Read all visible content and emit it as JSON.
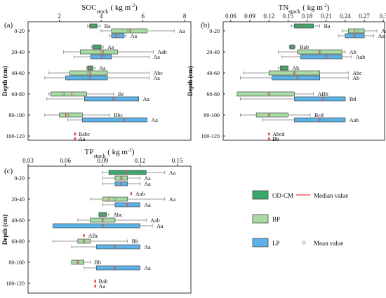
{
  "colors": {
    "odcm": "#3aa86a",
    "bp": "#a8dca4",
    "lp": "#5cb2e6",
    "median": "#e8413c",
    "mean": "#888888",
    "axis": "#000000"
  },
  "ylabel": "Depth (cm)",
  "depths": [
    "0-20",
    "20-40",
    "40-60",
    "60-80",
    "80-100",
    "100-120"
  ],
  "legend": {
    "odcm": "OD-CM",
    "bp": "BP",
    "lp": "LP",
    "median": "Median value",
    "mean": "Mean value"
  },
  "chart_data": [
    {
      "type": "box",
      "panel": "(a)",
      "title_main": "SOC",
      "title_sub": "stock",
      "title_units": "( kg m",
      "title_exp": "-2",
      "title_close": ")",
      "xticks": [
        2,
        4,
        6,
        8
      ],
      "xlim": [
        0.5,
        8.3
      ],
      "groups": [
        {
          "depth": "0-20",
          "boxes": [
            {
              "series": "OD-CM",
              "min": 3.35,
              "q1": 3.45,
              "median": 3.6,
              "q3": 3.8,
              "max": 3.95,
              "mean": 3.6,
              "label": "Ba"
            },
            {
              "series": "BP",
              "min": 4.0,
              "q1": 4.5,
              "median": 5.4,
              "q3": 6.2,
              "max": 7.5,
              "mean": 5.3,
              "label": "Aa"
            },
            {
              "series": "LP",
              "min": 4.4,
              "q1": 4.5,
              "median": 4.7,
              "q3": 5.1,
              "max": 5.2,
              "mean": 4.8,
              "label": "Aa"
            }
          ]
        },
        {
          "depth": "20-40",
          "boxes": [
            {
              "series": "OD-CM",
              "min": 3.55,
              "q1": 3.6,
              "median": 3.75,
              "q3": 4.0,
              "max": 4.1,
              "mean": 3.8,
              "label": "Aa"
            },
            {
              "series": "BP",
              "min": 2.2,
              "q1": 3.0,
              "median": 4.1,
              "q3": 4.8,
              "max": 6.5,
              "mean": 4.0,
              "label": "Aab"
            },
            {
              "series": "LP",
              "min": 2.7,
              "q1": 3.5,
              "median": 4.0,
              "q3": 4.5,
              "max": 6.3,
              "mean": 4.1,
              "label": "Aa"
            }
          ]
        },
        {
          "depth": "40-60",
          "boxes": [
            {
              "series": "OD-CM",
              "min": 3.3,
              "q1": 3.35,
              "median": 3.45,
              "q3": 3.6,
              "max": 3.7,
              "mean": 3.5,
              "label": "Aa"
            },
            {
              "series": "BP",
              "min": 1.5,
              "q1": 2.5,
              "median": 3.5,
              "q3": 4.3,
              "max": 6.3,
              "mean": 3.4,
              "label": "Abc"
            },
            {
              "series": "LP",
              "min": 1.3,
              "q1": 2.3,
              "median": 3.5,
              "q3": 4.3,
              "max": 6.3,
              "mean": 3.4,
              "label": "Aa"
            }
          ]
        },
        {
          "depth": "60-80",
          "boxes": [
            {
              "series": "BP",
              "min": 1.5,
              "q1": 1.6,
              "median": 2.6,
              "q3": 3.3,
              "max": 4.6,
              "mean": 2.2,
              "label": "Bc"
            },
            {
              "series": "LP",
              "min": 1.4,
              "q1": 3.2,
              "median": 4.6,
              "q3": 5.8,
              "max": 5.8,
              "mean": 4.6,
              "label": "Aa"
            }
          ]
        },
        {
          "depth": "80-100",
          "boxes": [
            {
              "series": "BP",
              "min": 1.3,
              "q1": 2.0,
              "median": 2.3,
              "q3": 3.1,
              "max": 4.4,
              "mean": 2.4,
              "label": "Bbc"
            },
            {
              "series": "LP",
              "min": 2.4,
              "q1": 3.1,
              "median": 5.1,
              "q3": 6.2,
              "max": 6.2,
              "mean": 5.1,
              "label": "Aa"
            }
          ]
        },
        {
          "depth": "100-120",
          "boxes": [
            {
              "series": "BP",
              "min": 2.75,
              "q1": 2.75,
              "median": 2.75,
              "q3": 2.75,
              "max": 2.75,
              "mean": 2.75,
              "label": "Babc"
            },
            {
              "series": "LP",
              "min": 2.75,
              "q1": 2.75,
              "median": 2.75,
              "q3": 2.75,
              "max": 2.75,
              "mean": 2.75,
              "label": "Aa"
            }
          ]
        }
      ]
    },
    {
      "type": "box",
      "panel": "(b)",
      "title_main": "TN",
      "title_sub": "stock",
      "title_units": "( kg m",
      "title_exp": "-2",
      "title_close": ")",
      "xticks": [
        0.06,
        0.09,
        0.12,
        0.15,
        0.18,
        0.21,
        0.24,
        0.27,
        0.3
      ],
      "xlim": [
        0.048,
        0.302
      ],
      "groups": [
        {
          "depth": "0-20",
          "boxes": [
            {
              "series": "OD-CM",
              "min": 0.155,
              "q1": 0.16,
              "median": 0.17,
              "q3": 0.19,
              "max": 0.2,
              "mean": 0.175,
              "label": "Ba"
            },
            {
              "series": "BP",
              "min": 0.235,
              "q1": 0.245,
              "median": 0.255,
              "q3": 0.27,
              "max": 0.29,
              "mean": 0.26,
              "label": "Aa"
            },
            {
              "series": "LP",
              "min": 0.23,
              "q1": 0.24,
              "median": 0.255,
              "q3": 0.27,
              "max": 0.285,
              "mean": 0.255,
              "label": "Aa"
            }
          ]
        },
        {
          "depth": "20-40",
          "boxes": [
            {
              "series": "OD-CM",
              "min": 0.152,
              "q1": 0.153,
              "median": 0.155,
              "q3": 0.16,
              "max": 0.162,
              "mean": 0.156,
              "label": "Bab"
            },
            {
              "series": "BP",
              "min": 0.135,
              "q1": 0.165,
              "median": 0.2,
              "q3": 0.235,
              "max": 0.24,
              "mean": 0.2,
              "label": "Ab"
            },
            {
              "series": "LP",
              "min": 0.14,
              "q1": 0.17,
              "median": 0.21,
              "q3": 0.235,
              "max": 0.25,
              "mean": 0.21,
              "label": "Aab"
            }
          ]
        },
        {
          "depth": "40-60",
          "boxes": [
            {
              "series": "OD-CM",
              "min": 0.135,
              "q1": 0.138,
              "median": 0.143,
              "q3": 0.15,
              "max": 0.15,
              "mean": 0.145,
              "label": "Ab"
            },
            {
              "series": "BP",
              "min": 0.08,
              "q1": 0.12,
              "median": 0.16,
              "q3": 0.2,
              "max": 0.245,
              "mean": 0.16,
              "label": "Abc"
            },
            {
              "series": "LP",
              "min": 0.075,
              "q1": 0.125,
              "median": 0.165,
              "q3": 0.2,
              "max": 0.245,
              "mean": 0.165,
              "label": "Ab"
            }
          ]
        },
        {
          "depth": "60-80",
          "boxes": [
            {
              "series": "BP",
              "min": 0.07,
              "q1": 0.07,
              "median": 0.12,
              "q3": 0.16,
              "max": 0.19,
              "mean": 0.12,
              "label": "ABb"
            },
            {
              "series": "LP",
              "min": 0.075,
              "q1": 0.16,
              "median": 0.205,
              "q3": 0.24,
              "max": 0.24,
              "mean": 0.205,
              "label": "Bd"
            }
          ]
        },
        {
          "depth": "80-100",
          "boxes": [
            {
              "series": "BP",
              "min": 0.075,
              "q1": 0.1,
              "median": 0.12,
              "q3": 0.15,
              "max": 0.185,
              "mean": 0.12,
              "label": "Bcd"
            },
            {
              "series": "LP",
              "min": 0.11,
              "q1": 0.16,
              "median": 0.2,
              "q3": 0.24,
              "max": 0.24,
              "mean": 0.2,
              "label": "Aab"
            }
          ]
        },
        {
          "depth": "100-120",
          "boxes": [
            {
              "series": "BP",
              "min": 0.12,
              "q1": 0.12,
              "median": 0.12,
              "q3": 0.12,
              "max": 0.12,
              "mean": 0.12,
              "label": "Abcd"
            },
            {
              "series": "LP",
              "min": 0.12,
              "q1": 0.12,
              "median": 0.12,
              "q3": 0.12,
              "max": 0.12,
              "mean": 0.12,
              "label": "Bb"
            }
          ]
        }
      ]
    },
    {
      "type": "box",
      "panel": "(c)",
      "title_main": "TP",
      "title_sub": "stock",
      "title_units": "( kg m",
      "title_exp": "-2",
      "title_close": ")",
      "xticks": [
        0.03,
        0.06,
        0.09,
        0.12,
        0.15
      ],
      "xlim": [
        0.03,
        0.161
      ],
      "groups": [
        {
          "depth": "0-20",
          "boxes": [
            {
              "series": "OD-CM",
              "min": 0.09,
              "q1": 0.095,
              "median": 0.11,
              "q3": 0.125,
              "max": 0.14,
              "mean": 0.11,
              "label": "Aa"
            },
            {
              "series": "BP",
              "min": 0.09,
              "q1": 0.1,
              "median": 0.105,
              "q3": 0.11,
              "max": 0.12,
              "mean": 0.105,
              "label": "Aa"
            },
            {
              "series": "LP",
              "min": 0.09,
              "q1": 0.1,
              "median": 0.105,
              "q3": 0.11,
              "max": 0.12,
              "mean": 0.105,
              "label": "Aa"
            }
          ]
        },
        {
          "depth": "20-40",
          "boxes": [
            {
              "series": "OD-CM",
              "min": 0.113,
              "q1": 0.113,
              "median": 0.113,
              "q3": 0.113,
              "max": 0.113,
              "mean": 0.113,
              "label": "Aab"
            },
            {
              "series": "BP",
              "min": 0.08,
              "q1": 0.09,
              "median": 0.095,
              "q3": 0.11,
              "max": 0.14,
              "mean": 0.1,
              "label": "Aa"
            },
            {
              "series": "LP",
              "min": 0.09,
              "q1": 0.1,
              "median": 0.11,
              "q3": 0.12,
              "max": 0.12,
              "mean": 0.11,
              "label": "Aa"
            }
          ]
        },
        {
          "depth": "40-60",
          "boxes": [
            {
              "series": "OD-CM",
              "min": 0.087,
              "q1": 0.087,
              "median": 0.09,
              "q3": 0.093,
              "max": 0.095,
              "mean": 0.09,
              "label": "Abc"
            },
            {
              "series": "BP",
              "min": 0.07,
              "q1": 0.08,
              "median": 0.09,
              "q3": 0.1,
              "max": 0.125,
              "mean": 0.09,
              "label": "Aab"
            },
            {
              "series": "LP",
              "min": 0.05,
              "q1": 0.05,
              "median": 0.09,
              "q3": 0.12,
              "max": 0.13,
              "mean": 0.09,
              "label": "Aa"
            }
          ]
        },
        {
          "depth": "60-80",
          "boxes": [
            {
              "series": "OD-CM",
              "min": 0.075,
              "q1": 0.075,
              "median": 0.075,
              "q3": 0.075,
              "max": 0.075,
              "mean": 0.075,
              "label": "ABc"
            },
            {
              "series": "BP",
              "min": 0.05,
              "q1": 0.07,
              "median": 0.075,
              "q3": 0.08,
              "max": 0.11,
              "mean": 0.075,
              "label": "Bb"
            },
            {
              "series": "LP",
              "min": 0.065,
              "q1": 0.085,
              "median": 0.1,
              "q3": 0.12,
              "max": 0.12,
              "mean": 0.1,
              "label": "Aa"
            }
          ]
        },
        {
          "depth": "80-100",
          "boxes": [
            {
              "series": "BP",
              "min": 0.065,
              "q1": 0.065,
              "median": 0.07,
              "q3": 0.075,
              "max": 0.08,
              "mean": 0.07,
              "label": "Bb"
            },
            {
              "series": "LP",
              "min": 0.075,
              "q1": 0.085,
              "median": 0.1,
              "q3": 0.12,
              "max": 0.12,
              "mean": 0.1,
              "label": "Aa"
            }
          ]
        },
        {
          "depth": "100-120",
          "boxes": [
            {
              "series": "BP",
              "min": 0.084,
              "q1": 0.084,
              "median": 0.084,
              "q3": 0.084,
              "max": 0.084,
              "mean": 0.084,
              "label": "Bab"
            },
            {
              "series": "LP",
              "min": 0.084,
              "q1": 0.084,
              "median": 0.084,
              "q3": 0.084,
              "max": 0.084,
              "mean": 0.084,
              "label": "Aa"
            }
          ]
        }
      ]
    }
  ]
}
